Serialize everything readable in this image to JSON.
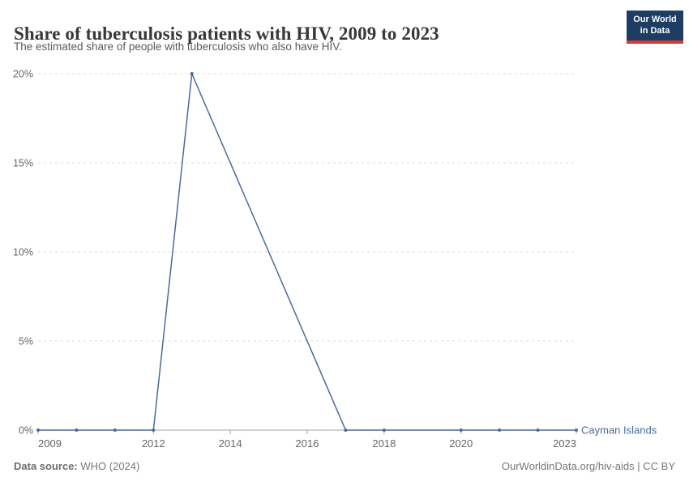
{
  "header": {
    "title": "Share of tuberculosis patients with HIV, 2009 to 2023",
    "subtitle": "The estimated share of people with tuberculosis who also have HIV."
  },
  "logo": {
    "line1": "Our World",
    "line2": "in Data",
    "background_color": "#1d3d63",
    "accent_color": "#d73c32"
  },
  "chart_data": {
    "type": "line",
    "title": "Share of tuberculosis patients with HIV, 2009 to 2023",
    "xlabel": "",
    "ylabel": "",
    "xlim": [
      2009,
      2023
    ],
    "ylim": [
      0,
      20
    ],
    "grid": "horizontal dashed",
    "legend_position": "right end of line",
    "line_color": "#4c6a9c",
    "grid_color": "#dddddd",
    "axis_color": "#a3a3a3",
    "tick_label_color": "#666666",
    "series": [
      {
        "name": "Cayman Islands",
        "color": "#4c6a9c",
        "points": [
          {
            "x": 2009,
            "y": 0
          },
          {
            "x": 2010,
            "y": 0
          },
          {
            "x": 2011,
            "y": 0
          },
          {
            "x": 2012,
            "y": 0
          },
          {
            "x": 2013,
            "y": 20
          },
          {
            "x": 2017,
            "y": 0
          },
          {
            "x": 2018,
            "y": 0
          },
          {
            "x": 2020,
            "y": 0
          },
          {
            "x": 2021,
            "y": 0
          },
          {
            "x": 2022,
            "y": 0
          },
          {
            "x": 2023,
            "y": 0
          }
        ]
      }
    ],
    "xticks": [
      {
        "value": 2009,
        "label": "2009"
      },
      {
        "value": 2012,
        "label": "2012"
      },
      {
        "value": 2014,
        "label": "2014"
      },
      {
        "value": 2016,
        "label": "2016"
      },
      {
        "value": 2018,
        "label": "2018"
      },
      {
        "value": 2020,
        "label": "2020"
      },
      {
        "value": 2023,
        "label": "2023"
      }
    ],
    "yticks": [
      {
        "value": 0,
        "label": "0%"
      },
      {
        "value": 5,
        "label": "5%"
      },
      {
        "value": 10,
        "label": "10%"
      },
      {
        "value": 15,
        "label": "15%"
      },
      {
        "value": 20,
        "label": "20%"
      }
    ]
  },
  "footer": {
    "datasource_label": "Data source:",
    "datasource_value": "WHO (2024)",
    "attribution": "OurWorldinData.org/hiv-aids | CC BY"
  }
}
